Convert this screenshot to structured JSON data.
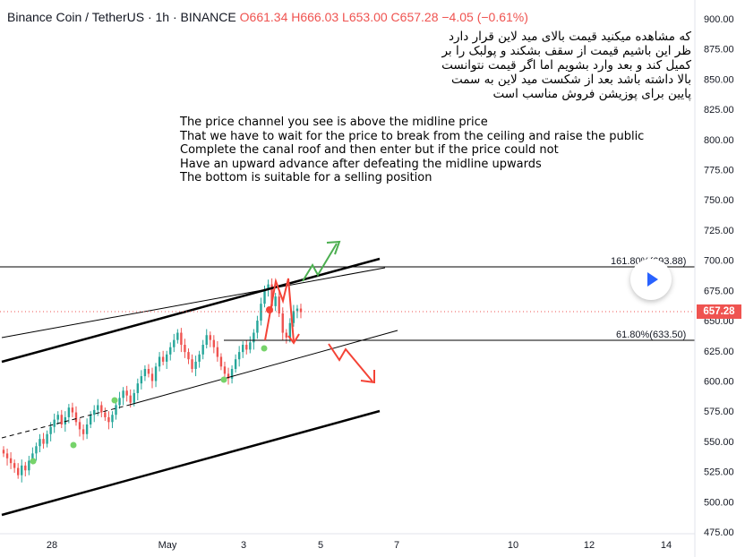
{
  "header": {
    "symbol": "Binance Coin / TetherUS · 1h · BINANCE",
    "ohlc": "O661.34 H666.03 L653.00 C657.28 −4.05 (−0.61%)"
  },
  "notes": {
    "persian": [
      "که مشاهده میکنید قیمت بالای مید لاین قرار دارد",
      "ظر این باشیم قیمت از سقف بشکند و پولبک را بر",
      "کمیل کند و بعد وارد بشویم اما اگر قیمت نتوانست",
      "بالا داشته باشد بعد از شکست مید لاین به سمت",
      "پایین برای پوزیشن فروش مناسب است"
    ],
    "english": [
      "The price channel you see is above the midline price",
      "That we have to wait for the price to break from the ceiling and raise the public",
      "Complete the canal roof and then enter but if the price could not",
      "Have an upward advance after defeating the midline upwards",
      "The bottom is suitable for a selling position"
    ]
  },
  "price_tag": "657.28",
  "fib_labels": {
    "upper": "161.80%(693.88)",
    "lower": "61.80%(633.50)"
  },
  "colors": {
    "up": "#26a69a",
    "down": "#ef5350",
    "accent": "#2962ff",
    "arrow_up": "#4caf50",
    "arrow_down": "#f44336"
  },
  "chart_data": {
    "type": "candlestick",
    "title": "Binance Coin / TetherUS · 1h · BINANCE",
    "xlabel": "",
    "ylabel": "",
    "x_ticks": [
      "28",
      "May",
      "3",
      "5",
      "7",
      "10",
      "12",
      "14"
    ],
    "y_ticks": [
      "900.00",
      "875.00",
      "850.00",
      "825.00",
      "800.00",
      "775.00",
      "750.00",
      "725.00",
      "700.00",
      "675.00",
      "650.00",
      "625.00",
      "600.00",
      "575.00",
      "550.00",
      "525.00",
      "500.00",
      "475.00"
    ],
    "ylim": [
      475,
      910
    ],
    "last_price": 657.28,
    "horizontal_levels": [
      {
        "label": "161.80%(693.88)",
        "price": 693.88
      },
      {
        "label": "61.80%(633.50)",
        "price": 633.5
      }
    ],
    "candle_closes": [
      540,
      536,
      532,
      528,
      522,
      530,
      526,
      534,
      540,
      546,
      552,
      548,
      556,
      562,
      568,
      572,
      564,
      570,
      578,
      574,
      566,
      560,
      556,
      564,
      572,
      576,
      580,
      574,
      570,
      566,
      572,
      580,
      586,
      592,
      588,
      582,
      590,
      598,
      604,
      610,
      606,
      600,
      612,
      620,
      616,
      622,
      628,
      634,
      640,
      630,
      624,
      618,
      610,
      616,
      622,
      630,
      638,
      634,
      628,
      620,
      612,
      606,
      602,
      610,
      618,
      624,
      630,
      626,
      632,
      640,
      650,
      664,
      676,
      680,
      662,
      670,
      656,
      640,
      636,
      648,
      658,
      660,
      657
    ]
  }
}
